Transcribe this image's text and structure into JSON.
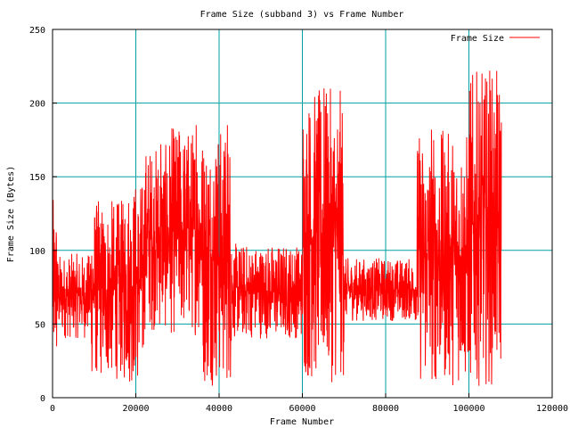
{
  "chart_data": {
    "type": "line",
    "title": "Frame Size (subband 3) vs Frame Number",
    "xlabel": "Frame Number",
    "ylabel": "Frame Size (Bytes)",
    "xlim": [
      0,
      120000
    ],
    "ylim": [
      0,
      250
    ],
    "xticks": [
      0,
      20000,
      40000,
      60000,
      80000,
      100000,
      120000
    ],
    "yticks": [
      0,
      50,
      100,
      150,
      200,
      250
    ],
    "grid": true,
    "legend": "top-right",
    "series": [
      {
        "name": "Frame Size",
        "color": "#ff0000",
        "x_range": [
          0,
          107800
        ],
        "segments": [
          {
            "x": [
              0,
              1200
            ],
            "low": 15,
            "high": 135
          },
          {
            "x": [
              1200,
              9000
            ],
            "low": 40,
            "high": 98
          },
          {
            "x": [
              9000,
              17000
            ],
            "low": 12,
            "high": 135
          },
          {
            "x": [
              17000,
              22000
            ],
            "low": 8,
            "high": 150
          },
          {
            "x": [
              22000,
              28000
            ],
            "low": 45,
            "high": 172
          },
          {
            "x": [
              28000,
              36000
            ],
            "low": 42,
            "high": 185
          },
          {
            "x": [
              36000,
              43000
            ],
            "low": 8,
            "high": 185
          },
          {
            "x": [
              43000,
              60000
            ],
            "low": 40,
            "high": 105
          },
          {
            "x": [
              60000,
              70000
            ],
            "low": 10,
            "high": 210
          },
          {
            "x": [
              70000,
              87500
            ],
            "low": 52,
            "high": 95
          },
          {
            "x": [
              87500,
              100000
            ],
            "low": 8,
            "high": 182
          },
          {
            "x": [
              100000,
              107800
            ],
            "low": 8,
            "high": 222
          }
        ],
        "peaks": [
          {
            "x": 65200,
            "y": 210
          },
          {
            "x": 105000,
            "y": 222
          },
          {
            "x": 34500,
            "y": 185
          },
          {
            "x": 42000,
            "y": 185
          },
          {
            "x": 91000,
            "y": 182
          },
          {
            "x": 30500,
            "y": 178
          },
          {
            "x": 26000,
            "y": 172
          }
        ]
      }
    ]
  },
  "legend": {
    "label": "Frame Size",
    "color": "#ff0000"
  },
  "colors": {
    "grid": "#00a0a0",
    "axis": "#000000",
    "background": "#ffffff"
  }
}
